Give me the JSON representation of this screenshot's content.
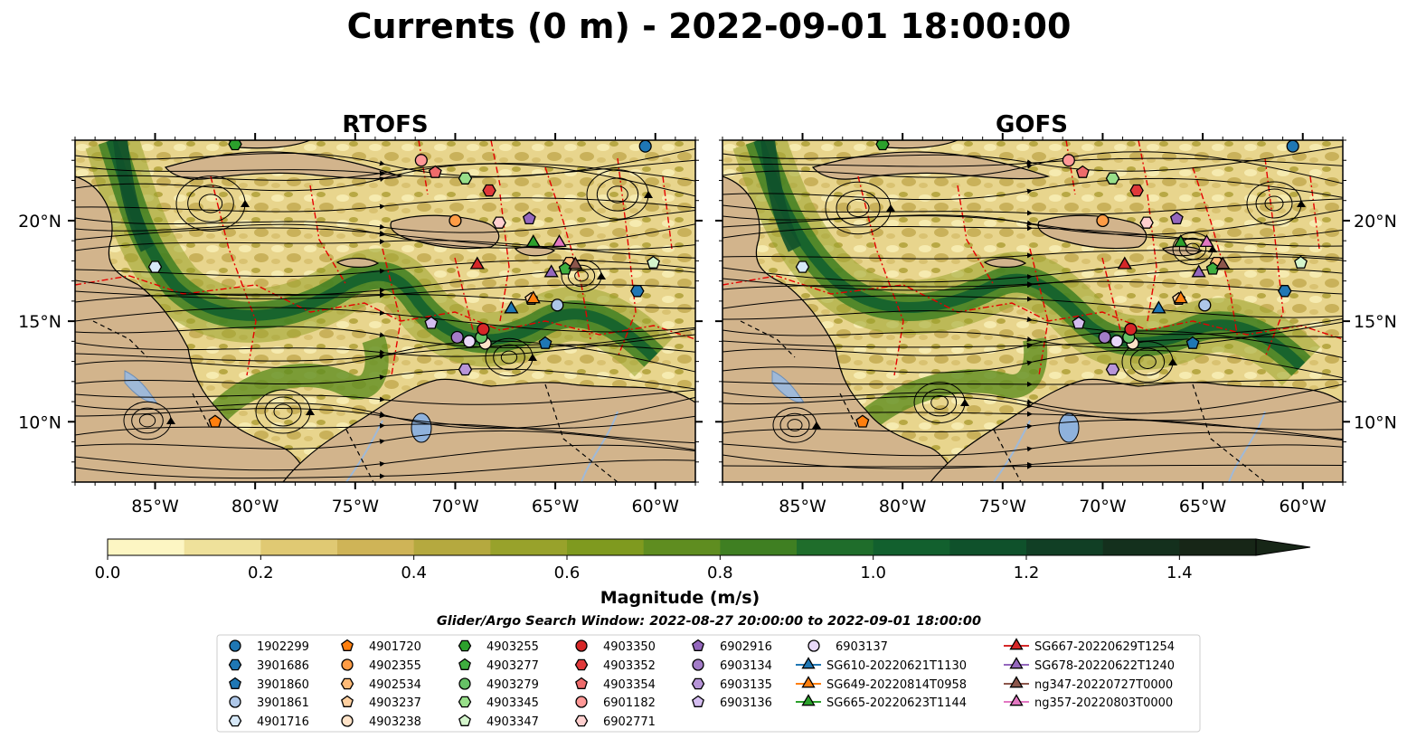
{
  "title": "Currents (0 m) - 2022-09-01 18:00:00",
  "panels": [
    {
      "title": "RTOFS"
    },
    {
      "title": "GOFS"
    }
  ],
  "axes": {
    "lon_ticks": [
      "85°W",
      "80°W",
      "75°W",
      "70°W",
      "65°W",
      "60°W"
    ],
    "lat_ticks": [
      "20°N",
      "15°N",
      "10°N"
    ],
    "lon_range": [
      -89,
      -58
    ],
    "lat_range": [
      7,
      24
    ]
  },
  "colorbar": {
    "label": "Magnitude (m/s)",
    "ticks": [
      "0.0",
      "0.2",
      "0.4",
      "0.6",
      "0.8",
      "1.0",
      "1.2",
      "1.4"
    ],
    "min": 0.0,
    "max": 1.5,
    "extend": "max",
    "colors": [
      "#fdf6c3",
      "#efe19b",
      "#e0c973",
      "#cfb457",
      "#b5a93f",
      "#98a22b",
      "#7f9a1f",
      "#5f8d20",
      "#3f7f22",
      "#1f6d2b",
      "#12602e",
      "#0f512b",
      "#113f25",
      "#14301d",
      "#172617"
    ]
  },
  "search_window": "Glider/Argo Search Window: 2022-08-27 20:00:00 to 2022-09-01 18:00:00",
  "legend": {
    "columns": [
      [
        {
          "label": "1902299",
          "marker": "circle",
          "color": "#1f77b4"
        },
        {
          "label": "3901686",
          "marker": "hexagon",
          "color": "#1f77b4"
        },
        {
          "label": "3901860",
          "marker": "pentagon",
          "color": "#1f77b4"
        },
        {
          "label": "3901861",
          "marker": "circle",
          "color": "#aec7e8"
        },
        {
          "label": "4901716",
          "marker": "hexagon",
          "color": "#d6e8f8"
        }
      ],
      [
        {
          "label": "4901720",
          "marker": "pentagon",
          "color": "#ff7f0e"
        },
        {
          "label": "4902355",
          "marker": "circle",
          "color": "#ff9c45"
        },
        {
          "label": "4902534",
          "marker": "hexagon",
          "color": "#ffbb78"
        },
        {
          "label": "4903237",
          "marker": "pentagon",
          "color": "#ffd0a0"
        },
        {
          "label": "4903238",
          "marker": "circle",
          "color": "#ffe3c8"
        }
      ],
      [
        {
          "label": "4903255",
          "marker": "hexagon",
          "color": "#2ca02c"
        },
        {
          "label": "4903277",
          "marker": "pentagon",
          "color": "#3fae3f"
        },
        {
          "label": "4903279",
          "marker": "circle",
          "color": "#66c266"
        },
        {
          "label": "4903345",
          "marker": "hexagon",
          "color": "#98df8a"
        },
        {
          "label": "4903347",
          "marker": "pentagon",
          "color": "#d4f5cc"
        }
      ],
      [
        {
          "label": "4903350",
          "marker": "circle",
          "color": "#d62728"
        },
        {
          "label": "4903352",
          "marker": "hexagon",
          "color": "#e0393a"
        },
        {
          "label": "4903354",
          "marker": "pentagon",
          "color": "#ee6b6b"
        },
        {
          "label": "6901182",
          "marker": "circle",
          "color": "#ff9896"
        },
        {
          "label": "6902771",
          "marker": "hexagon",
          "color": "#ffd0cf"
        }
      ],
      [
        {
          "label": "6902916",
          "marker": "pentagon",
          "color": "#9467bd"
        },
        {
          "label": "6903134",
          "marker": "circle",
          "color": "#a37cc8"
        },
        {
          "label": "6903135",
          "marker": "hexagon",
          "color": "#b795d8"
        },
        {
          "label": "6903136",
          "marker": "pentagon",
          "color": "#d4bdf0"
        }
      ],
      [
        {
          "label": "6903137",
          "marker": "circle",
          "color": "#e8d8f8"
        },
        {
          "label": "SG610-20220621T1130",
          "marker": "triangle",
          "color": "#1f77b4"
        },
        {
          "label": "SG649-20220814T0958",
          "marker": "triangle",
          "color": "#ff7f0e"
        },
        {
          "label": "SG665-20220623T1144",
          "marker": "triangle",
          "color": "#2ca02c"
        }
      ],
      [
        {
          "label": "SG667-20220629T1254",
          "marker": "triangle",
          "color": "#d62728"
        },
        {
          "label": "SG678-20220622T1240",
          "marker": "triangle",
          "color": "#9467bd"
        },
        {
          "label": "ng347-20220727T0000",
          "marker": "triangle",
          "color": "#8c564b"
        },
        {
          "label": "ng357-20220803T0000",
          "marker": "triangle",
          "color": "#e377c2"
        }
      ]
    ]
  },
  "platform_positions": [
    {
      "label": "1902299",
      "lon": -60.5,
      "lat": 23.7
    },
    {
      "label": "3901686",
      "lon": -60.9,
      "lat": 16.5
    },
    {
      "label": "3901860",
      "lon": -65.5,
      "lat": 13.9
    },
    {
      "label": "3901861",
      "lon": -64.9,
      "lat": 15.8
    },
    {
      "label": "4901716",
      "lon": -85.0,
      "lat": 17.7
    },
    {
      "label": "4901720",
      "lon": -82.0,
      "lat": 10.0
    },
    {
      "label": "4902355",
      "lon": -70.0,
      "lat": 20.0
    },
    {
      "label": "4902534",
      "lon": -64.3,
      "lat": 17.9
    },
    {
      "label": "4903237",
      "lon": -66.2,
      "lat": 16.1
    },
    {
      "label": "4903238",
      "lon": -68.5,
      "lat": 13.9
    },
    {
      "label": "4903255",
      "lon": -81.0,
      "lat": 23.8
    },
    {
      "label": "4903277",
      "lon": -64.5,
      "lat": 17.6
    },
    {
      "label": "4903279",
      "lon": -68.7,
      "lat": 14.2
    },
    {
      "label": "4903345",
      "lon": -69.5,
      "lat": 22.1
    },
    {
      "label": "4903347",
      "lon": -60.1,
      "lat": 17.9
    },
    {
      "label": "4903350",
      "lon": -68.6,
      "lat": 14.6
    },
    {
      "label": "4903352",
      "lon": -68.3,
      "lat": 21.5
    },
    {
      "label": "4903354",
      "lon": -71.0,
      "lat": 22.4
    },
    {
      "label": "6901182",
      "lon": -71.7,
      "lat": 23.0
    },
    {
      "label": "6902771",
      "lon": -67.8,
      "lat": 19.9
    },
    {
      "label": "6902916",
      "lon": -66.3,
      "lat": 20.1
    },
    {
      "label": "6903134",
      "lon": -69.9,
      "lat": 14.2
    },
    {
      "label": "6903135",
      "lon": -69.5,
      "lat": 12.6
    },
    {
      "label": "6903136",
      "lon": -71.2,
      "lat": 14.9
    },
    {
      "label": "6903137",
      "lon": -69.3,
      "lat": 14.0
    },
    {
      "label": "SG610-20220621T1130",
      "lon": -67.2,
      "lat": 15.6
    },
    {
      "label": "SG649-20220814T0958",
      "lon": -66.1,
      "lat": 16.1
    },
    {
      "label": "SG665-20220623T1144",
      "lon": -66.1,
      "lat": 18.9
    },
    {
      "label": "SG667-20220629T1254",
      "lon": -68.9,
      "lat": 17.8
    },
    {
      "label": "SG678-20220622T1240",
      "lon": -65.2,
      "lat": 17.4
    },
    {
      "label": "ng347-20220727T0000",
      "lon": -64.0,
      "lat": 17.8
    },
    {
      "label": "ng357-20220803T0000",
      "lon": -64.8,
      "lat": 18.9
    }
  ]
}
